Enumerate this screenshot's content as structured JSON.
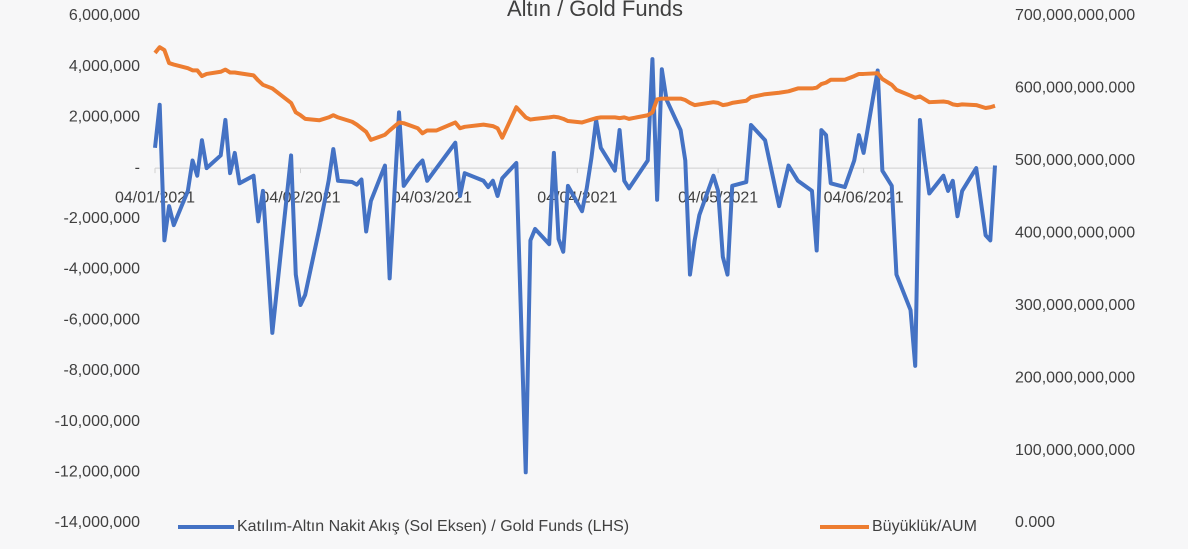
{
  "chart_data": {
    "type": "line",
    "title": "Altın / Gold Funds",
    "x": [
      "2021-01-04",
      "2021-01-05",
      "2021-01-06",
      "2021-01-07",
      "2021-01-08",
      "2021-01-11",
      "2021-01-12",
      "2021-01-13",
      "2021-01-14",
      "2021-01-15",
      "2021-01-18",
      "2021-01-19",
      "2021-01-20",
      "2021-01-21",
      "2021-01-22",
      "2021-01-25",
      "2021-01-26",
      "2021-01-27",
      "2021-01-29",
      "2021-02-02",
      "2021-02-03",
      "2021-02-04",
      "2021-02-05",
      "2021-02-08",
      "2021-02-10",
      "2021-02-11",
      "2021-02-12",
      "2021-02-15",
      "2021-02-16",
      "2021-02-17",
      "2021-02-18",
      "2021-02-19",
      "2021-02-22",
      "2021-02-23",
      "2021-02-25",
      "2021-02-26",
      "2021-03-01",
      "2021-03-02",
      "2021-03-03",
      "2021-03-05",
      "2021-03-09",
      "2021-03-10",
      "2021-03-11",
      "2021-03-15",
      "2021-03-16",
      "2021-03-17",
      "2021-03-18",
      "2021-03-19",
      "2021-03-22",
      "2021-03-24",
      "2021-03-25",
      "2021-03-26",
      "2021-03-29",
      "2021-03-30",
      "2021-03-31",
      "2021-04-01",
      "2021-04-02",
      "2021-04-05",
      "2021-04-06",
      "2021-04-07",
      "2021-04-08",
      "2021-04-09",
      "2021-04-12",
      "2021-04-13",
      "2021-04-14",
      "2021-04-15",
      "2021-04-19",
      "2021-04-20",
      "2021-04-21",
      "2021-04-22",
      "2021-04-23",
      "2021-04-26",
      "2021-04-27",
      "2021-04-28",
      "2021-04-29",
      "2021-04-30",
      "2021-05-03",
      "2021-05-04",
      "2021-05-05",
      "2021-05-06",
      "2021-05-07",
      "2021-05-10",
      "2021-05-11",
      "2021-05-14",
      "2021-05-17",
      "2021-05-19",
      "2021-05-21",
      "2021-05-24",
      "2021-05-25",
      "2021-05-26",
      "2021-05-27",
      "2021-05-28",
      "2021-05-31",
      "2021-06-02",
      "2021-06-03",
      "2021-06-04",
      "2021-06-07",
      "2021-06-08",
      "2021-06-10",
      "2021-06-11",
      "2021-06-14",
      "2021-06-15",
      "2021-06-16",
      "2021-06-17",
      "2021-06-18",
      "2021-06-21",
      "2021-06-22",
      "2021-06-23",
      "2021-06-24",
      "2021-06-25",
      "2021-06-28",
      "2021-06-30",
      "2021-07-01",
      "2021-07-02"
    ],
    "series": [
      {
        "name": "Katılım-Altın Nakit Akış (Sol Eksen) / Gold Funds (LHS)",
        "color": "#4472c4",
        "axis": "y",
        "values": [
          800000,
          2500000,
          -2850000,
          -1500000,
          -2250000,
          -900000,
          300000,
          -300000,
          1100000,
          0,
          500000,
          1900000,
          -200000,
          600000,
          -600000,
          -300000,
          -2100000,
          -900000,
          -6500000,
          500000,
          -4200000,
          -5400000,
          -5000000,
          -2400000,
          -500000,
          750000,
          -500000,
          -550000,
          -650000,
          -450000,
          -2500000,
          -1300000,
          100000,
          -4350000,
          2200000,
          -700000,
          100000,
          300000,
          -500000,
          0,
          1000000,
          -1100000,
          -200000,
          -500000,
          -750000,
          -500000,
          -1100000,
          -400000,
          200000,
          -12000000,
          -2850000,
          -2400000,
          -3000000,
          600000,
          -2800000,
          -3300000,
          -700000,
          -1700000,
          -800000,
          400000,
          1900000,
          800000,
          -100000,
          1500000,
          -500000,
          -800000,
          300000,
          4300000,
          -1250000,
          3900000,
          2700000,
          1500000,
          300000,
          -4200000,
          -2850000,
          -1850000,
          -300000,
          -900000,
          -3500000,
          -4200000,
          -700000,
          -550000,
          1700000,
          1100000,
          -1500000,
          100000,
          -500000,
          -900000,
          -3250000,
          1500000,
          1300000,
          -600000,
          -750000,
          300000,
          1300000,
          600000,
          3850000,
          -100000,
          -700000,
          -4200000,
          -5600000,
          -7800000,
          1900000,
          300000,
          -1000000,
          -300000,
          -900000,
          -500000,
          -1900000,
          -900000,
          0,
          -2650000,
          -2850000,
          100000
        ]
      },
      {
        "name": "Büyüklük/AUM",
        "color": "#ed7d31",
        "axis": "y2",
        "values": [
          649000000000,
          657000000000,
          653000000000,
          635000000000,
          633000000000,
          628000000000,
          625000000000,
          625000000000,
          617000000000,
          620000000000,
          623000000000,
          626000000000,
          622000000000,
          622000000000,
          621000000000,
          618000000000,
          611000000000,
          605000000000,
          600000000000,
          580000000000,
          567000000000,
          563000000000,
          558000000000,
          556000000000,
          560000000000,
          563000000000,
          560000000000,
          554000000000,
          550000000000,
          545000000000,
          540000000000,
          529000000000,
          536000000000,
          542000000000,
          553000000000,
          552000000000,
          545000000000,
          538000000000,
          542000000000,
          542000000000,
          553000000000,
          545000000000,
          547000000000,
          550000000000,
          549000000000,
          548000000000,
          545000000000,
          532000000000,
          574000000000,
          560000000000,
          557000000000,
          558000000000,
          560000000000,
          561000000000,
          560000000000,
          558000000000,
          555000000000,
          553000000000,
          555000000000,
          557000000000,
          559000000000,
          560000000000,
          560000000000,
          559000000000,
          560000000000,
          558000000000,
          563000000000,
          567000000000,
          585000000000,
          586000000000,
          586000000000,
          586000000000,
          584000000000,
          580000000000,
          577000000000,
          578000000000,
          581000000000,
          580000000000,
          577000000000,
          578000000000,
          580000000000,
          583000000000,
          588000000000,
          592000000000,
          594000000000,
          596000000000,
          600000000000,
          600000000000,
          601000000000,
          606000000000,
          608000000000,
          612000000000,
          612000000000,
          617000000000,
          620000000000,
          620000000000,
          621000000000,
          613000000000,
          605000000000,
          598000000000,
          590000000000,
          587000000000,
          589000000000,
          585000000000,
          581000000000,
          582000000000,
          581000000000,
          578000000000,
          577000000000,
          578000000000,
          577000000000,
          573000000000,
          574000000000,
          576000000000
        ]
      }
    ],
    "xlim": [
      "2021-01-04",
      "2021-07-02"
    ],
    "xticks": [
      {
        "value": "2021-01-04",
        "label": "04/01/2021"
      },
      {
        "value": "2021-02-04",
        "label": "04/02/2021"
      },
      {
        "value": "2021-03-04",
        "label": "04/03/2021"
      },
      {
        "value": "2021-04-04",
        "label": "04/04/2021"
      },
      {
        "value": "2021-05-04",
        "label": "04/05/2021"
      },
      {
        "value": "2021-06-04",
        "label": "04/06/2021"
      }
    ],
    "ylim": [
      -14000000,
      6000000
    ],
    "yticks": [
      {
        "value": -14000000,
        "label": "-14,000,000"
      },
      {
        "value": -12000000,
        "label": "-12,000,000"
      },
      {
        "value": -10000000,
        "label": "-10,000,000"
      },
      {
        "value": -8000000,
        "label": "-8,000,000"
      },
      {
        "value": -6000000,
        "label": "-6,000,000"
      },
      {
        "value": -4000000,
        "label": "-4,000,000"
      },
      {
        "value": -2000000,
        "label": "-2,000,000"
      },
      {
        "value": 0,
        "label": "-"
      },
      {
        "value": 2000000,
        "label": "2,000,000"
      },
      {
        "value": 4000000,
        "label": "4,000,000"
      },
      {
        "value": 6000000,
        "label": "6,000,000"
      }
    ],
    "y2lim": [
      0,
      700000000000
    ],
    "y2ticks": [
      {
        "value": 0,
        "label": "0.000"
      },
      {
        "value": 100000000000,
        "label": "100,000,000,000"
      },
      {
        "value": 200000000000,
        "label": "200,000,000,000"
      },
      {
        "value": 300000000000,
        "label": "300,000,000,000"
      },
      {
        "value": 400000000000,
        "label": "400,000,000,000"
      },
      {
        "value": 500000000000,
        "label": "500,000,000,000"
      },
      {
        "value": 600000000000,
        "label": "600,000,000.000"
      },
      {
        "value": 700000000000,
        "label": "700,000,000,000"
      }
    ],
    "legend": "bottom"
  }
}
